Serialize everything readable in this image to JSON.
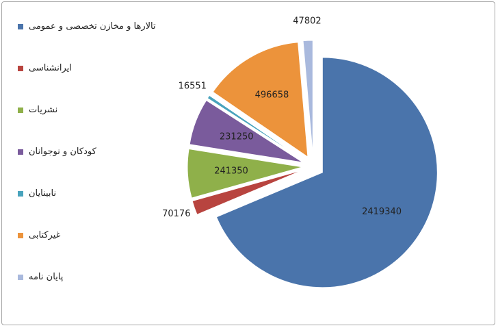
{
  "chart_data": {
    "type": "pie",
    "categories": [
      "تالارها و مخازن تخصصی و عمومی",
      "ایرانشناسی",
      "نشریات",
      "کودکان و نوجوانان",
      "نابینایان",
      "غیرکتابی",
      "پایان نامه"
    ],
    "values": [
      2419340,
      70176,
      241350,
      231250,
      16551,
      496658,
      47802
    ],
    "colors": [
      "#4a74ab",
      "#b8443f",
      "#8fb04a",
      "#7a5b9c",
      "#48a3bd",
      "#ec933b",
      "#a9b9dd"
    ],
    "legend": "left"
  }
}
